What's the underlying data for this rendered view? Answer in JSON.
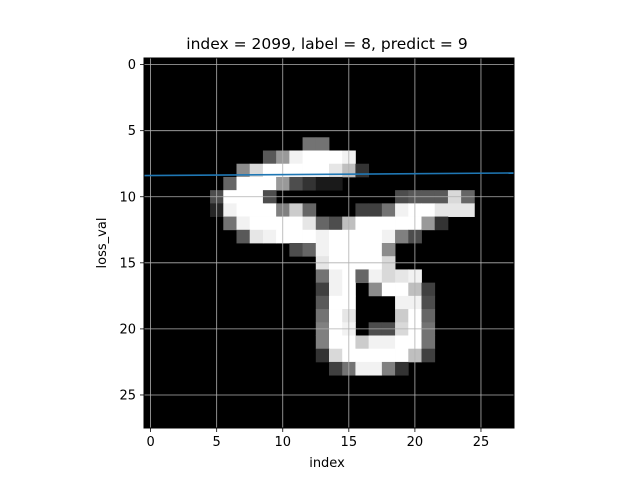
{
  "chart_data": {
    "type": "heatmap",
    "title": "index = 2099, label = 8, predict = 9",
    "xlabel": "index",
    "ylabel": "loss_val",
    "xlim": [
      -0.5,
      27.5
    ],
    "ylim": [
      27.5,
      -0.5
    ],
    "x_ticks": [
      0,
      5,
      10,
      15,
      20,
      25
    ],
    "y_ticks": [
      0,
      5,
      10,
      15,
      20,
      25
    ],
    "grid": true,
    "colormap": "gray",
    "image_rows": {
      "6": [
        [
          12,
          0.45
        ],
        [
          13,
          0.45
        ]
      ],
      "7": [
        [
          9,
          0.35
        ],
        [
          10,
          0.6
        ],
        [
          11,
          0.95
        ],
        [
          12,
          1.0
        ],
        [
          13,
          1.0
        ],
        [
          14,
          1.0
        ],
        [
          15,
          0.95
        ]
      ],
      "8": [
        [
          7,
          0.55
        ],
        [
          8,
          0.85
        ],
        [
          9,
          1.0
        ],
        [
          10,
          1.0
        ],
        [
          11,
          1.0
        ],
        [
          12,
          1.0
        ],
        [
          13,
          1.0
        ],
        [
          14,
          0.9
        ],
        [
          15,
          0.75
        ],
        [
          16,
          0.2
        ]
      ],
      "9": [
        [
          6,
          0.4
        ],
        [
          7,
          1.0
        ],
        [
          8,
          1.0
        ],
        [
          9,
          1.0
        ],
        [
          10,
          0.6
        ],
        [
          11,
          0.3
        ],
        [
          12,
          0.2
        ],
        [
          13,
          0.1
        ],
        [
          14,
          0.1
        ]
      ],
      "10": [
        [
          5,
          0.3
        ],
        [
          6,
          1.0
        ],
        [
          7,
          1.0
        ],
        [
          8,
          1.0
        ],
        [
          9,
          0.3
        ],
        [
          19,
          0.3
        ],
        [
          20,
          0.35
        ],
        [
          21,
          0.35
        ],
        [
          22,
          0.35
        ],
        [
          23,
          0.85
        ],
        [
          24,
          0.4
        ]
      ],
      "11": [
        [
          5,
          0.15
        ],
        [
          6,
          0.95
        ],
        [
          7,
          1.0
        ],
        [
          8,
          1.0
        ],
        [
          9,
          1.0
        ],
        [
          10,
          0.5
        ],
        [
          11,
          0.8
        ],
        [
          12,
          0.4
        ],
        [
          16,
          0.25
        ],
        [
          17,
          0.25
        ],
        [
          18,
          0.45
        ],
        [
          19,
          0.95
        ],
        [
          20,
          1.0
        ],
        [
          21,
          1.0
        ],
        [
          22,
          0.9
        ],
        [
          23,
          0.9
        ],
        [
          24,
          0.9
        ]
      ],
      "12": [
        [
          6,
          0.45
        ],
        [
          7,
          0.95
        ],
        [
          8,
          1.0
        ],
        [
          9,
          1.0
        ],
        [
          10,
          1.0
        ],
        [
          11,
          1.0
        ],
        [
          12,
          0.9
        ],
        [
          13,
          0.4
        ],
        [
          14,
          0.3
        ],
        [
          15,
          0.75
        ],
        [
          16,
          1.0
        ],
        [
          17,
          1.0
        ],
        [
          18,
          1.0
        ],
        [
          19,
          1.0
        ],
        [
          20,
          1.0
        ],
        [
          21,
          0.6
        ],
        [
          22,
          0.2
        ]
      ],
      "13": [
        [
          7,
          0.35
        ],
        [
          8,
          0.9
        ],
        [
          9,
          0.95
        ],
        [
          10,
          1.0
        ],
        [
          11,
          1.0
        ],
        [
          12,
          1.0
        ],
        [
          13,
          0.95
        ],
        [
          14,
          1.0
        ],
        [
          15,
          1.0
        ],
        [
          16,
          1.0
        ],
        [
          17,
          1.0
        ],
        [
          18,
          0.95
        ],
        [
          19,
          0.5
        ],
        [
          20,
          0.3
        ]
      ],
      "14": [
        [
          11,
          0.3
        ],
        [
          12,
          0.4
        ],
        [
          13,
          0.95
        ],
        [
          14,
          1.0
        ],
        [
          15,
          1.0
        ],
        [
          16,
          1.0
        ],
        [
          17,
          1.0
        ],
        [
          18,
          0.55
        ]
      ],
      "15": [
        [
          13,
          0.9
        ],
        [
          14,
          1.0
        ],
        [
          15,
          1.0
        ],
        [
          16,
          1.0
        ],
        [
          17,
          1.0
        ],
        [
          18,
          0.85
        ]
      ],
      "16": [
        [
          13,
          0.45
        ],
        [
          14,
          0.95
        ],
        [
          15,
          1.0
        ],
        [
          16,
          0.4
        ],
        [
          17,
          0.95
        ],
        [
          18,
          0.85
        ],
        [
          19,
          0.9
        ],
        [
          20,
          0.95
        ]
      ],
      "17": [
        [
          13,
          0.25
        ],
        [
          14,
          0.95
        ],
        [
          15,
          1.0
        ],
        [
          17,
          0.55
        ],
        [
          18,
          1.0
        ],
        [
          19,
          1.0
        ],
        [
          20,
          0.75
        ],
        [
          21,
          0.25
        ]
      ],
      "18": [
        [
          13,
          0.35
        ],
        [
          14,
          1.0
        ],
        [
          15,
          1.0
        ],
        [
          19,
          0.95
        ],
        [
          20,
          0.95
        ],
        [
          21,
          0.3
        ]
      ],
      "19": [
        [
          13,
          0.45
        ],
        [
          14,
          1.0
        ],
        [
          15,
          0.9
        ],
        [
          19,
          0.8
        ],
        [
          20,
          1.0
        ],
        [
          21,
          0.4
        ]
      ],
      "20": [
        [
          13,
          0.5
        ],
        [
          14,
          1.0
        ],
        [
          15,
          0.95
        ],
        [
          17,
          0.3
        ],
        [
          18,
          0.3
        ],
        [
          19,
          0.85
        ],
        [
          20,
          1.0
        ],
        [
          21,
          0.45
        ]
      ],
      "21": [
        [
          13,
          0.5
        ],
        [
          14,
          1.0
        ],
        [
          15,
          1.0
        ],
        [
          16,
          0.8
        ],
        [
          17,
          0.95
        ],
        [
          18,
          0.95
        ],
        [
          19,
          1.0
        ],
        [
          20,
          1.0
        ],
        [
          21,
          0.45
        ]
      ],
      "22": [
        [
          13,
          0.2
        ],
        [
          14,
          0.85
        ],
        [
          15,
          1.0
        ],
        [
          16,
          1.0
        ],
        [
          17,
          1.0
        ],
        [
          18,
          1.0
        ],
        [
          19,
          1.0
        ],
        [
          20,
          0.75
        ],
        [
          21,
          0.25
        ]
      ],
      "23": [
        [
          14,
          0.25
        ],
        [
          15,
          0.45
        ],
        [
          16,
          0.95
        ],
        [
          17,
          0.95
        ],
        [
          18,
          0.5
        ],
        [
          19,
          0.2
        ]
      ]
    },
    "series": [
      {
        "type": "line",
        "color": "#1f77b4",
        "x": [
          -0.5,
          27.5
        ],
        "y": [
          8.4,
          8.2
        ]
      }
    ],
    "colors": {
      "plot_background": "#000000",
      "grid": "#b0b0b0",
      "line": "#1f77b4"
    }
  }
}
